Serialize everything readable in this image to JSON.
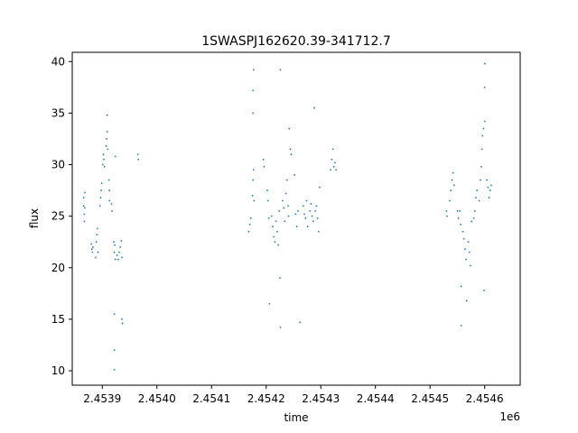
{
  "chart_data": {
    "type": "scatter",
    "title": "1SWASPJ162620.39-341712.7",
    "xlabel": "time",
    "ylabel": "flux",
    "x_offset_label": "1e6",
    "xlim": [
      2453845,
      2454665
    ],
    "ylim": [
      8.6,
      40.9
    ],
    "x_ticks": [
      2453900,
      2454000,
      2454100,
      2454200,
      2454300,
      2454400,
      2454500,
      2454600
    ],
    "x_tick_labels": [
      "2.4539",
      "2.4540",
      "2.4541",
      "2.4542",
      "2.4543",
      "2.4544",
      "2.4545",
      "2.4546"
    ],
    "y_ticks": [
      10,
      15,
      20,
      25,
      30,
      35,
      40
    ],
    "y_tick_labels": [
      "10",
      "15",
      "20",
      "25",
      "30",
      "35",
      "40"
    ],
    "grid": false,
    "legend": "none",
    "marker_color": "#1f77b4",
    "series": [
      {
        "values_note": "",
        "points": [
          [
            2453866,
            26.8
          ],
          [
            2453866,
            26.0
          ],
          [
            2453867,
            25.2
          ],
          [
            2453867,
            24.5
          ],
          [
            2453868,
            27.3
          ],
          [
            2453868,
            25.8
          ],
          [
            2453880,
            22.3
          ],
          [
            2453881,
            21.8
          ],
          [
            2453882,
            21.5
          ],
          [
            2453883,
            22.0
          ],
          [
            2453888,
            21.0
          ],
          [
            2453889,
            22.5
          ],
          [
            2453890,
            23.2
          ],
          [
            2453891,
            23.8
          ],
          [
            2453892,
            21.5
          ],
          [
            2453896,
            26.0
          ],
          [
            2453897,
            26.8
          ],
          [
            2453898,
            27.5
          ],
          [
            2453899,
            28.2
          ],
          [
            2453901,
            30.0
          ],
          [
            2453902,
            31.0
          ],
          [
            2453903,
            30.5
          ],
          [
            2453904,
            29.8
          ],
          [
            2453907,
            31.8
          ],
          [
            2453908,
            32.5
          ],
          [
            2453909,
            33.2
          ],
          [
            2453910,
            31.5
          ],
          [
            2453909,
            34.8
          ],
          [
            2453912,
            28.5
          ],
          [
            2453913,
            27.5
          ],
          [
            2453913,
            26.5
          ],
          [
            2453917,
            26.2
          ],
          [
            2453918,
            25.5
          ],
          [
            2453921,
            22.5
          ],
          [
            2453922,
            21.5
          ],
          [
            2453923,
            22.2
          ],
          [
            2453924,
            20.8
          ],
          [
            2453922,
            15.5
          ],
          [
            2453922,
            12.0
          ],
          [
            2453922,
            10.1
          ],
          [
            2453924,
            30.8
          ],
          [
            2453927,
            21.2
          ],
          [
            2453929,
            20.8
          ],
          [
            2453931,
            21.5
          ],
          [
            2453933,
            22.0
          ],
          [
            2453935,
            22.6
          ],
          [
            2453936,
            21.0
          ],
          [
            2453936,
            15.0
          ],
          [
            2453937,
            14.6
          ],
          [
            2453965,
            31.0
          ],
          [
            2453966,
            30.5
          ],
          [
            2454168,
            23.5
          ],
          [
            2454170,
            24.2
          ],
          [
            2454172,
            24.8
          ],
          [
            2454175,
            27.0
          ],
          [
            2454176,
            28.5
          ],
          [
            2454177,
            29.5
          ],
          [
            2454178,
            26.5
          ],
          [
            2454177,
            39.2
          ],
          [
            2454176,
            35.0
          ],
          [
            2454176,
            37.2
          ],
          [
            2454195,
            30.5
          ],
          [
            2454196,
            29.8
          ],
          [
            2454202,
            27.5
          ],
          [
            2454203,
            26.5
          ],
          [
            2454205,
            24.8
          ],
          [
            2454206,
            16.5
          ],
          [
            2454210,
            25.0
          ],
          [
            2454212,
            24.0
          ],
          [
            2454214,
            23.0
          ],
          [
            2454216,
            22.5
          ],
          [
            2454218,
            24.5
          ],
          [
            2454220,
            23.5
          ],
          [
            2454222,
            22.2
          ],
          [
            2454224,
            25.5
          ],
          [
            2454225,
            19.0
          ],
          [
            2454226,
            14.2
          ],
          [
            2454226,
            39.2
          ],
          [
            2454230,
            26.5
          ],
          [
            2454232,
            25.8
          ],
          [
            2454234,
            24.5
          ],
          [
            2454236,
            27.2
          ],
          [
            2454238,
            28.5
          ],
          [
            2454240,
            26.0
          ],
          [
            2454241,
            25.0
          ],
          [
            2454242,
            33.5
          ],
          [
            2454244,
            31.5
          ],
          [
            2454246,
            31.0
          ],
          [
            2454252,
            29.0
          ],
          [
            2454254,
            25.2
          ],
          [
            2454256,
            24.0
          ],
          [
            2454258,
            25.5
          ],
          [
            2454262,
            14.7
          ],
          [
            2454268,
            26.0
          ],
          [
            2454270,
            25.2
          ],
          [
            2454272,
            24.8
          ],
          [
            2454274,
            26.5
          ],
          [
            2454276,
            24.0
          ],
          [
            2454280,
            25.5
          ],
          [
            2454282,
            26.2
          ],
          [
            2454284,
            25.0
          ],
          [
            2454286,
            24.5
          ],
          [
            2454288,
            35.5
          ],
          [
            2454290,
            25.5
          ],
          [
            2454292,
            26.0
          ],
          [
            2454294,
            24.8
          ],
          [
            2454296,
            23.5
          ],
          [
            2454298,
            27.8
          ],
          [
            2454318,
            29.5
          ],
          [
            2454320,
            30.5
          ],
          [
            2454322,
            31.5
          ],
          [
            2454324,
            29.8
          ],
          [
            2454326,
            30.2
          ],
          [
            2454328,
            29.5
          ],
          [
            2454530,
            25.5
          ],
          [
            2454531,
            25.0
          ],
          [
            2454536,
            26.5
          ],
          [
            2454538,
            27.5
          ],
          [
            2454540,
            28.5
          ],
          [
            2454542,
            29.2
          ],
          [
            2454544,
            28.0
          ],
          [
            2454550,
            25.5
          ],
          [
            2454552,
            24.8
          ],
          [
            2454554,
            25.5
          ],
          [
            2454556,
            24.2
          ],
          [
            2454557,
            18.2
          ],
          [
            2454557,
            14.4
          ],
          [
            2454560,
            23.5
          ],
          [
            2454562,
            22.8
          ],
          [
            2454564,
            21.8
          ],
          [
            2454566,
            20.8
          ],
          [
            2454567,
            16.8
          ],
          [
            2454570,
            22.5
          ],
          [
            2454572,
            21.5
          ],
          [
            2454574,
            20.2
          ],
          [
            2454576,
            24.5
          ],
          [
            2454580,
            24.8
          ],
          [
            2454582,
            25.5
          ],
          [
            2454584,
            26.8
          ],
          [
            2454586,
            27.5
          ],
          [
            2454590,
            26.5
          ],
          [
            2454592,
            28.5
          ],
          [
            2454594,
            29.8
          ],
          [
            2454595,
            31.5
          ],
          [
            2454596,
            32.8
          ],
          [
            2454598,
            33.5
          ],
          [
            2454600,
            34.2
          ],
          [
            2454600,
            37.5
          ],
          [
            2454600,
            39.8
          ],
          [
            2454599,
            17.8
          ],
          [
            2454604,
            28.5
          ],
          [
            2454606,
            27.8
          ],
          [
            2454608,
            26.8
          ],
          [
            2454610,
            27.5
          ],
          [
            2454612,
            28.0
          ]
        ]
      }
    ]
  }
}
